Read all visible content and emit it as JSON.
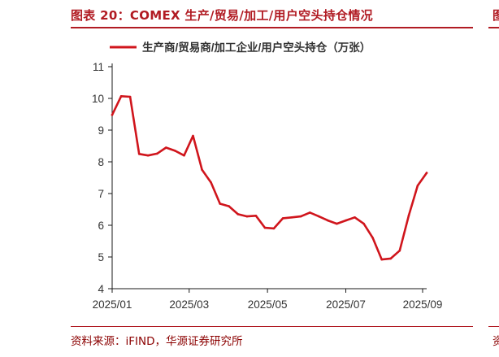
{
  "header": {
    "title": "图表 20：COMEX 生产/贸易/加工/用户空头持仓情况",
    "cut_title_fragment": "图"
  },
  "footer": {
    "source": "资料来源：iFIND，华源证券研究所",
    "cut_source_fragment": "资"
  },
  "colors": {
    "accent": "#b11b23",
    "line": "#d0151c",
    "axis": "#1a1a1a",
    "text": "#333333"
  },
  "chart_data": {
    "type": "line",
    "title": "",
    "xlabel": "",
    "ylabel": "",
    "legend": "top",
    "grid": false,
    "ylim": [
      4,
      11
    ],
    "yticks": [
      4,
      5,
      6,
      7,
      8,
      9,
      10,
      11
    ],
    "xticks": [
      "2025/01",
      "2025/03",
      "2025/05",
      "2025/07",
      "2025/09"
    ],
    "xlim": [
      "2024-12-31",
      "2025-09-02"
    ],
    "series": [
      {
        "name": "生产商/贸易商/加工企业/用户空头持仓（万张）",
        "x": [
          "2024-12-31",
          "2025-01-07",
          "2025-01-14",
          "2025-01-21",
          "2025-01-28",
          "2025-02-04",
          "2025-02-11",
          "2025-02-18",
          "2025-02-25",
          "2025-03-04",
          "2025-03-11",
          "2025-03-18",
          "2025-03-25",
          "2025-04-01",
          "2025-04-08",
          "2025-04-15",
          "2025-04-22",
          "2025-04-29",
          "2025-05-06",
          "2025-05-13",
          "2025-05-20",
          "2025-05-27",
          "2025-06-03",
          "2025-06-10",
          "2025-06-17",
          "2025-06-24",
          "2025-07-01",
          "2025-07-08",
          "2025-07-15",
          "2025-07-22",
          "2025-07-29",
          "2025-08-05",
          "2025-08-12",
          "2025-08-19",
          "2025-08-26",
          "2025-09-02"
        ],
        "values": [
          9.48,
          10.07,
          10.05,
          8.25,
          8.2,
          8.26,
          8.45,
          8.35,
          8.2,
          8.82,
          7.75,
          7.35,
          6.68,
          6.6,
          6.35,
          6.28,
          6.3,
          5.92,
          5.9,
          6.22,
          6.25,
          6.28,
          6.4,
          6.28,
          6.15,
          6.05,
          6.15,
          6.25,
          6.05,
          5.6,
          4.92,
          4.95,
          5.2,
          6.3,
          7.25,
          7.65
        ]
      }
    ]
  }
}
